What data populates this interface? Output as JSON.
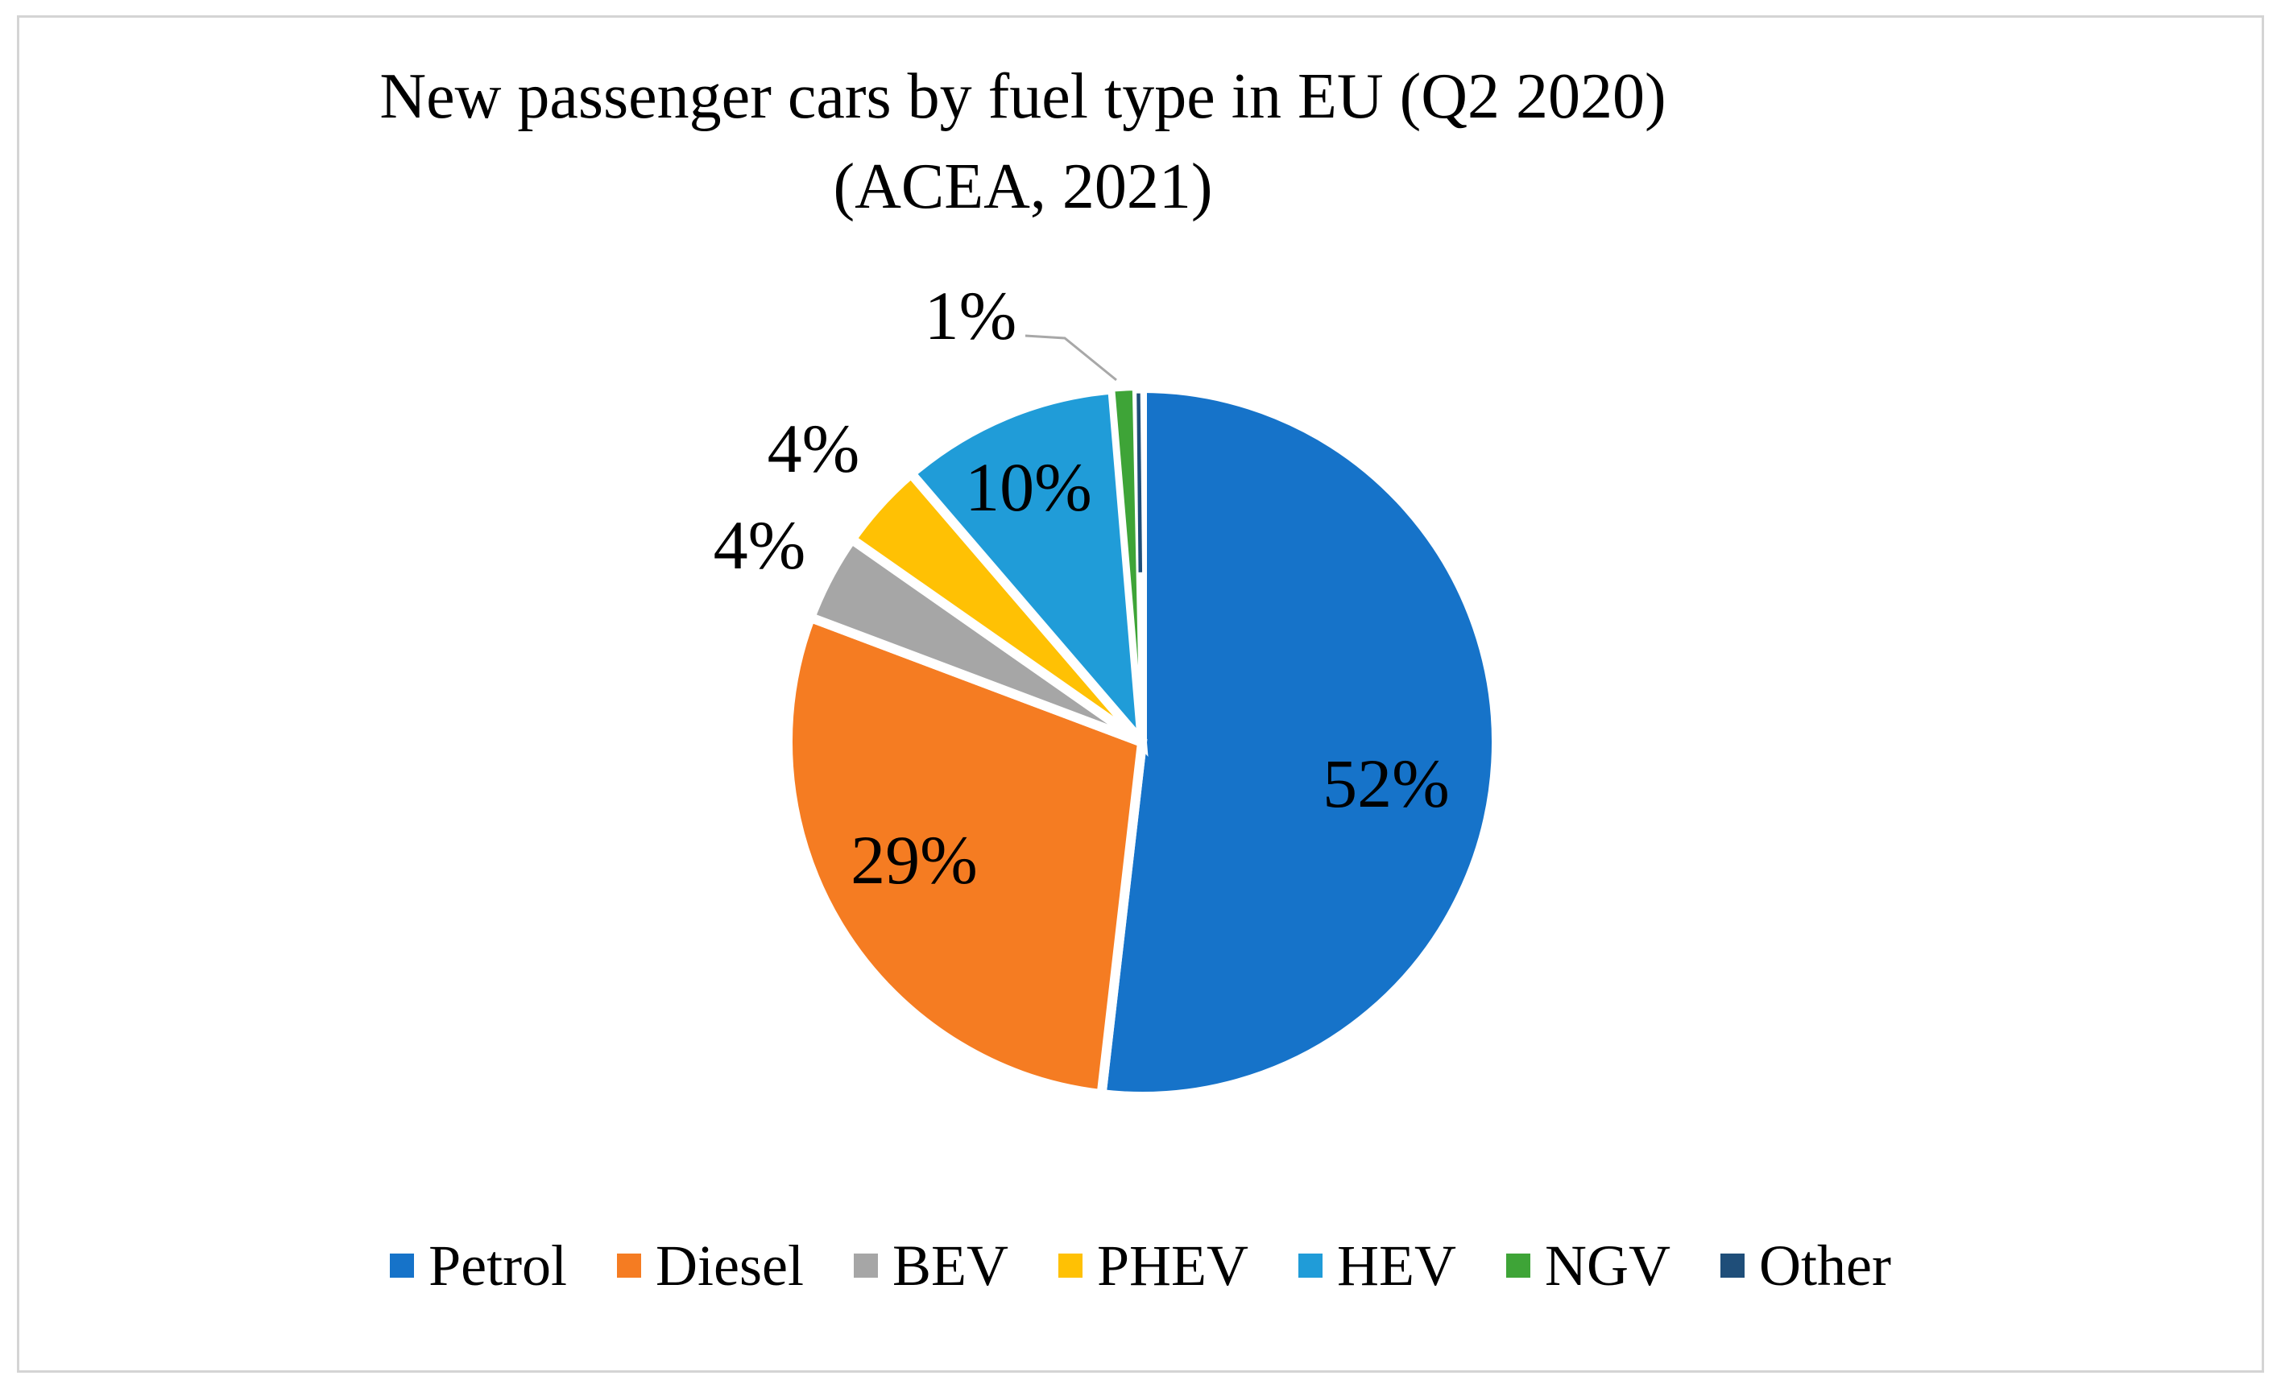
{
  "title": {
    "line1": "New passenger cars by fuel type in EU (Q2 2020)",
    "line2": "(ACEA, 2021)"
  },
  "chart_data": {
    "type": "pie",
    "title": "New passenger cars by fuel type in EU (Q2 2020)",
    "subtitle": "(ACEA, 2021)",
    "unit": "%",
    "start_angle_deg": 0,
    "direction": "clockwise",
    "legend_position": "bottom",
    "slice_separator_color": "#ffffff",
    "leader_line_color": "#a8a8a8",
    "categories": [
      "Petrol",
      "Diesel",
      "BEV",
      "PHEV",
      "HEV",
      "NGV",
      "Other"
    ],
    "values": [
      52,
      29,
      4,
      4,
      10,
      1,
      0
    ],
    "data_labels": [
      "52%",
      "29%",
      "4%",
      "4%",
      "10%",
      "1%",
      ""
    ],
    "colors": [
      "#1673C9",
      "#F57C22",
      "#A6A6A6",
      "#FFC104",
      "#209CD8",
      "#3EA437",
      "#1F4E79"
    ]
  },
  "frame": {
    "border_color": "#d4d4d4",
    "background": "#ffffff"
  }
}
